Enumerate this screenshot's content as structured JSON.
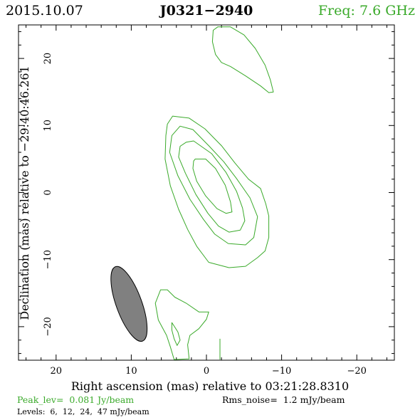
{
  "header": {
    "date": "2015.10.07",
    "source": "J0321−2940",
    "freq": "Freq: 7.6 GHz"
  },
  "footer": {
    "peak": "Peak_lev=  0.081 Jy/beam",
    "rms": "Rms_noise=  1.2 mJy/beam",
    "levels": "Levels:  6,  12,  24,  47 mJy/beam"
  },
  "colors": {
    "contour": "#3aaa2a",
    "beam_fill": "#808080",
    "header_green": "#3aaa2a"
  },
  "chart_data": {
    "type": "contour",
    "title": "J0321−2940",
    "xlabel": "Right ascension (mas) relative to 03:21:28.8310",
    "ylabel": "Declination (mas) relative to −29:40:46.261",
    "xlim": [
      25,
      -25
    ],
    "ylim": [
      -25,
      25
    ],
    "x_ticks": [
      20,
      10,
      0,
      -10,
      -20
    ],
    "x_tick_labels": [
      "20",
      "10",
      "0",
      "−10",
      "−20"
    ],
    "y_ticks": [
      20,
      10,
      0,
      -10,
      -20
    ],
    "y_tick_labels": [
      "20",
      "10",
      "0",
      "−10",
      "−20"
    ],
    "minor_step": 2,
    "peak_jy_per_beam": 0.081,
    "rms_mjy_per_beam": 1.2,
    "levels_mjy_per_beam": [
      6,
      12,
      24,
      47
    ],
    "beam": {
      "center": [
        10.3,
        -16.6
      ],
      "bmaj_mas": 11.8,
      "bmin_mas": 3.4,
      "pa_deg": 20
    },
    "contours": [
      {
        "level": 6,
        "points": [
          [
            -1.5,
            24.7
          ],
          [
            -3.2,
            24.7
          ],
          [
            -5,
            23.5
          ],
          [
            -6.5,
            21.5
          ],
          [
            -7.8,
            19
          ],
          [
            -8.5,
            16.8
          ],
          [
            -8.9,
            15
          ],
          [
            -8.3,
            14.9
          ],
          [
            -7.2,
            15.9
          ],
          [
            -5.2,
            17.4
          ],
          [
            -3.2,
            18.8
          ],
          [
            -2,
            19.4
          ],
          [
            -1.2,
            20.6
          ],
          [
            -0.8,
            22.5
          ],
          [
            -0.9,
            24.2
          ]
        ]
      },
      {
        "level": 6,
        "points": [
          [
            4.5,
            11.4
          ],
          [
            2.3,
            11.1
          ],
          [
            0.2,
            9.5
          ],
          [
            -2,
            7
          ],
          [
            -3.8,
            4.4
          ],
          [
            -5.6,
            2
          ],
          [
            -7.2,
            0.6
          ],
          [
            -7.9,
            -1.7
          ],
          [
            -8.3,
            -3.5
          ],
          [
            -8.3,
            -6.7
          ],
          [
            -7.8,
            -8.7
          ],
          [
            -6.8,
            -9.7
          ],
          [
            -5.2,
            -11
          ],
          [
            -3,
            -11.2
          ],
          [
            -0.3,
            -10.4
          ],
          [
            1.3,
            -8
          ],
          [
            2.5,
            -5.5
          ],
          [
            3.7,
            -2.5
          ],
          [
            4.8,
            1
          ],
          [
            5.5,
            5
          ],
          [
            5.4,
            8.5
          ],
          [
            5.2,
            10.2
          ]
        ]
      },
      {
        "level": 12,
        "points": [
          [
            3.5,
            9.9
          ],
          [
            1.8,
            9.4
          ],
          [
            -0.3,
            7
          ],
          [
            -2.3,
            4.6
          ],
          [
            -4,
            2.1
          ],
          [
            -5.8,
            -0.8
          ],
          [
            -6.8,
            -3.6
          ],
          [
            -6.3,
            -6.7
          ],
          [
            -5.2,
            -7.8
          ],
          [
            -2.9,
            -7.6
          ],
          [
            -1.1,
            -6.2
          ],
          [
            0.4,
            -4
          ],
          [
            2.2,
            -1
          ],
          [
            3.8,
            2.5
          ],
          [
            4.9,
            6
          ],
          [
            4.6,
            8.5
          ]
        ]
      },
      {
        "level": 24,
        "points": [
          [
            2.7,
            7.5
          ],
          [
            1.7,
            7.7
          ],
          [
            -0.7,
            5.8
          ],
          [
            -2.6,
            3
          ],
          [
            -4,
            0.2
          ],
          [
            -4.8,
            -2.3
          ],
          [
            -5.1,
            -4.2
          ],
          [
            -4.5,
            -5.6
          ],
          [
            -3,
            -5.9
          ],
          [
            -1.6,
            -5
          ],
          [
            -0.2,
            -3.1
          ],
          [
            1.4,
            -0.3
          ],
          [
            2.8,
            2.9
          ],
          [
            3.7,
            5.3
          ],
          [
            3.5,
            6.9
          ]
        ]
      },
      {
        "level": 47,
        "points": [
          [
            1.5,
            5
          ],
          [
            0.1,
            5
          ],
          [
            -1.2,
            3.6
          ],
          [
            -2.5,
            1.1
          ],
          [
            -3.2,
            -1.4
          ],
          [
            -3.4,
            -2.9
          ],
          [
            -2.6,
            -3.1
          ],
          [
            -1.4,
            -2.4
          ],
          [
            0.1,
            -0.5
          ],
          [
            1.3,
            1.7
          ],
          [
            1.8,
            3.6
          ],
          [
            1.7,
            4.7
          ]
        ]
      },
      {
        "level": 6,
        "points": [
          [
            2.3,
            -24.8
          ],
          [
            2.5,
            -22.7
          ],
          [
            2.2,
            -21.3
          ],
          [
            1,
            -20.3
          ],
          [
            0,
            -18.9
          ],
          [
            -0.3,
            -17.8
          ],
          [
            1,
            -17.8
          ],
          [
            2.7,
            -16.5
          ],
          [
            4.2,
            -15.6
          ],
          [
            5.2,
            -14.5
          ],
          [
            6.1,
            -14.5
          ],
          [
            6.8,
            -16.5
          ],
          [
            6.4,
            -19
          ],
          [
            5.3,
            -21.3
          ],
          [
            4.8,
            -23
          ],
          [
            4.3,
            -24.9
          ]
        ]
      },
      {
        "level": 6,
        "points": [
          [
            4.6,
            -19.4
          ],
          [
            4.3,
            -19.9
          ],
          [
            3.8,
            -20.8
          ],
          [
            3.5,
            -22
          ],
          [
            3.9,
            -22.8
          ],
          [
            4.3,
            -21.8
          ],
          [
            4.6,
            -20.5
          ]
        ]
      },
      {
        "level": 6,
        "points": [
          [
            -1.8,
            -24.9
          ],
          [
            -1.8,
            -21.8
          ]
        ]
      }
    ]
  }
}
